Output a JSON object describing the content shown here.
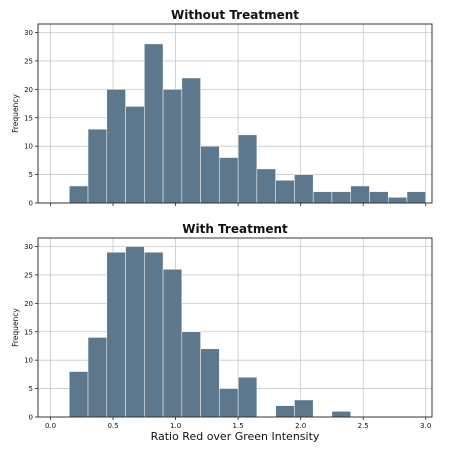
{
  "chart_data": [
    {
      "type": "bar",
      "title": "Without Treatment",
      "ylabel": "Frequency",
      "xlabel": "",
      "xlim": [
        -0.1,
        3.05
      ],
      "ylim": [
        0,
        31.5
      ],
      "bin_width": 0.15,
      "x": [
        0.225,
        0.375,
        0.525,
        0.675,
        0.825,
        0.975,
        1.125,
        1.275,
        1.425,
        1.575,
        1.725,
        1.875,
        2.025,
        2.175,
        2.325,
        2.475,
        2.625,
        2.775,
        2.925
      ],
      "values": [
        3,
        13,
        20,
        17,
        28,
        20,
        22,
        10,
        8,
        12,
        6,
        4,
        5,
        2,
        2,
        3,
        2,
        1,
        2
      ],
      "yticks": [
        0,
        5,
        10,
        15,
        20,
        25,
        30
      ],
      "xticks": [
        0.0,
        0.5,
        1.0,
        1.5,
        2.0,
        2.5,
        3.0
      ],
      "show_xtick_labels": false,
      "grid": true,
      "color": "#5d788c"
    },
    {
      "type": "bar",
      "title": "With Treatment",
      "ylabel": "Frequency",
      "xlabel": "Ratio Red over Green Intensity",
      "xlim": [
        -0.1,
        3.05
      ],
      "ylim": [
        0,
        31.5
      ],
      "bin_width": 0.15,
      "x": [
        0.225,
        0.375,
        0.525,
        0.675,
        0.825,
        0.975,
        1.125,
        1.275,
        1.425,
        1.575,
        1.725,
        1.875,
        2.025,
        2.175,
        2.325,
        2.475,
        2.625,
        2.775,
        2.925
      ],
      "values": [
        8,
        14,
        29,
        30,
        29,
        26,
        15,
        12,
        5,
        7,
        0,
        2,
        3,
        0,
        1,
        0,
        0,
        0,
        0
      ],
      "yticks": [
        0,
        5,
        10,
        15,
        20,
        25,
        30
      ],
      "xticks": [
        0.0,
        0.5,
        1.0,
        1.5,
        2.0,
        2.5,
        3.0
      ],
      "xtick_labels": [
        "0.0",
        "0.5",
        "1.0",
        "1.5",
        "2.0",
        "2.5",
        "3.0"
      ],
      "show_xtick_labels": true,
      "grid": true,
      "color": "#5d788c"
    }
  ]
}
